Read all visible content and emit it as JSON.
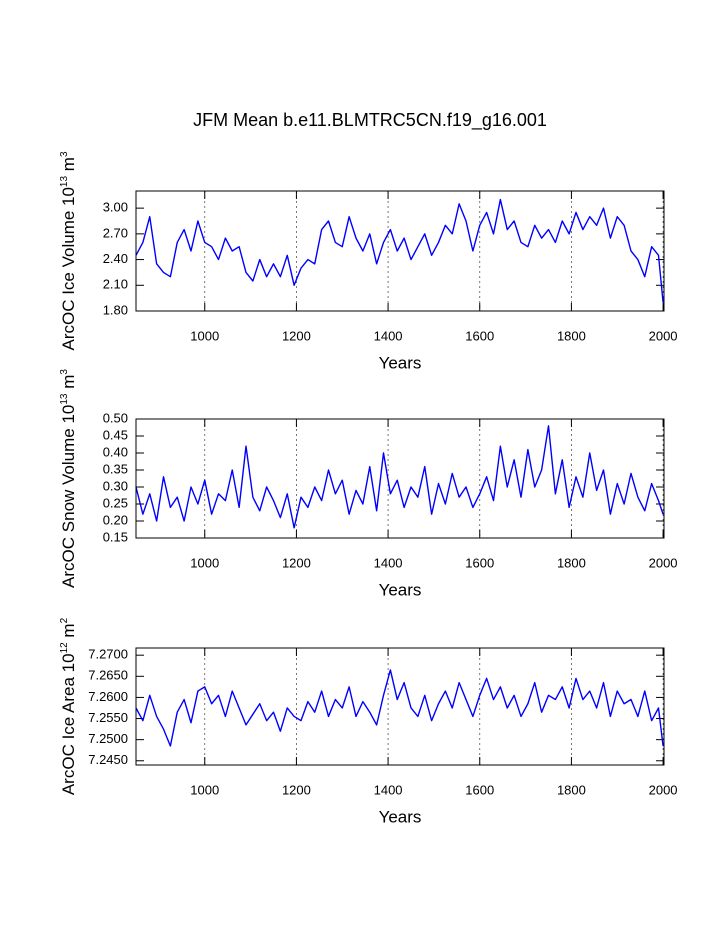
{
  "chart_data": [
    {
      "type": "line",
      "title": "JFM Mean b.e11.BLMTRC5CN.f19_g16.001",
      "xlabel": "Years",
      "ylabel": [
        "ArcOC Ice Volume 10",
        "13",
        " m",
        "3"
      ],
      "x": [
        850,
        865,
        880,
        895,
        910,
        925,
        940,
        955,
        970,
        985,
        1000,
        1015,
        1030,
        1045,
        1060,
        1075,
        1090,
        1105,
        1120,
        1135,
        1150,
        1165,
        1180,
        1195,
        1210,
        1225,
        1240,
        1255,
        1270,
        1285,
        1300,
        1315,
        1330,
        1345,
        1360,
        1375,
        1390,
        1405,
        1420,
        1435,
        1450,
        1465,
        1480,
        1495,
        1510,
        1525,
        1540,
        1555,
        1570,
        1585,
        1600,
        1615,
        1630,
        1645,
        1660,
        1675,
        1690,
        1705,
        1720,
        1735,
        1750,
        1765,
        1780,
        1795,
        1810,
        1825,
        1840,
        1855,
        1870,
        1885,
        1900,
        1915,
        1930,
        1945,
        1960,
        1975,
        1990,
        2000
      ],
      "series": [
        {
          "color": "#0000ff",
          "values": [
            2.45,
            2.6,
            2.9,
            2.35,
            2.25,
            2.2,
            2.6,
            2.75,
            2.5,
            2.85,
            2.6,
            2.55,
            2.4,
            2.65,
            2.5,
            2.55,
            2.25,
            2.15,
            2.4,
            2.2,
            2.35,
            2.2,
            2.45,
            2.1,
            2.3,
            2.4,
            2.35,
            2.75,
            2.85,
            2.6,
            2.55,
            2.9,
            2.65,
            2.5,
            2.7,
            2.35,
            2.6,
            2.75,
            2.5,
            2.65,
            2.4,
            2.55,
            2.7,
            2.45,
            2.6,
            2.8,
            2.7,
            3.05,
            2.85,
            2.5,
            2.8,
            2.95,
            2.7,
            3.1,
            2.75,
            2.85,
            2.6,
            2.55,
            2.8,
            2.65,
            2.75,
            2.6,
            2.85,
            2.7,
            2.95,
            2.75,
            2.9,
            2.8,
            3.0,
            2.65,
            2.9,
            2.8,
            2.5,
            2.4,
            2.2,
            2.55,
            2.45,
            1.9
          ]
        }
      ],
      "xlim": [
        850,
        2002
      ],
      "ylim": [
        1.8,
        3.2
      ],
      "xticks": [
        1000,
        1200,
        1400,
        1600,
        1800,
        2000
      ],
      "yticks": [
        {
          "value": 1.8,
          "label": "1.80"
        },
        {
          "value": 2.1,
          "label": "2.10"
        },
        {
          "value": 2.4,
          "label": "2.40"
        },
        {
          "value": 2.7,
          "label": "2.70"
        },
        {
          "value": 3.0,
          "label": "3.00"
        }
      ],
      "grid": true
    },
    {
      "type": "line",
      "xlabel": "Years",
      "ylabel": [
        "ArcOC Snow Volume 10",
        "13",
        " m",
        "3"
      ],
      "x": [
        850,
        865,
        880,
        895,
        910,
        925,
        940,
        955,
        970,
        985,
        1000,
        1015,
        1030,
        1045,
        1060,
        1075,
        1090,
        1105,
        1120,
        1135,
        1150,
        1165,
        1180,
        1195,
        1210,
        1225,
        1240,
        1255,
        1270,
        1285,
        1300,
        1315,
        1330,
        1345,
        1360,
        1375,
        1390,
        1405,
        1420,
        1435,
        1450,
        1465,
        1480,
        1495,
        1510,
        1525,
        1540,
        1555,
        1570,
        1585,
        1600,
        1615,
        1630,
        1645,
        1660,
        1675,
        1690,
        1705,
        1720,
        1735,
        1750,
        1765,
        1780,
        1795,
        1810,
        1825,
        1840,
        1855,
        1870,
        1885,
        1900,
        1915,
        1930,
        1945,
        1960,
        1975,
        1990,
        2000
      ],
      "series": [
        {
          "color": "#0000ff",
          "values": [
            0.3,
            0.22,
            0.28,
            0.2,
            0.33,
            0.24,
            0.27,
            0.2,
            0.3,
            0.25,
            0.32,
            0.22,
            0.28,
            0.26,
            0.35,
            0.24,
            0.42,
            0.27,
            0.23,
            0.3,
            0.26,
            0.21,
            0.28,
            0.18,
            0.27,
            0.24,
            0.3,
            0.26,
            0.35,
            0.28,
            0.32,
            0.22,
            0.29,
            0.25,
            0.36,
            0.23,
            0.4,
            0.28,
            0.32,
            0.24,
            0.3,
            0.27,
            0.36,
            0.22,
            0.31,
            0.25,
            0.34,
            0.27,
            0.3,
            0.24,
            0.28,
            0.33,
            0.26,
            0.42,
            0.3,
            0.38,
            0.27,
            0.41,
            0.3,
            0.35,
            0.48,
            0.28,
            0.38,
            0.24,
            0.33,
            0.27,
            0.4,
            0.29,
            0.35,
            0.22,
            0.31,
            0.25,
            0.34,
            0.27,
            0.23,
            0.31,
            0.26,
            0.22
          ]
        }
      ],
      "xlim": [
        850,
        2002
      ],
      "ylim": [
        0.15,
        0.5
      ],
      "xticks": [
        1000,
        1200,
        1400,
        1600,
        1800,
        2000
      ],
      "yticks": [
        {
          "value": 0.15,
          "label": "0.15"
        },
        {
          "value": 0.2,
          "label": "0.20"
        },
        {
          "value": 0.25,
          "label": "0.25"
        },
        {
          "value": 0.3,
          "label": "0.30"
        },
        {
          "value": 0.35,
          "label": "0.35"
        },
        {
          "value": 0.4,
          "label": "0.40"
        },
        {
          "value": 0.45,
          "label": "0.45"
        },
        {
          "value": 0.5,
          "label": "0.50"
        }
      ],
      "grid": true
    },
    {
      "type": "line",
      "xlabel": "Years",
      "ylabel": [
        "ArcOC Ice Area 10",
        "12",
        " m",
        "2"
      ],
      "x": [
        850,
        865,
        880,
        895,
        910,
        925,
        940,
        955,
        970,
        985,
        1000,
        1015,
        1030,
        1045,
        1060,
        1075,
        1090,
        1105,
        1120,
        1135,
        1150,
        1165,
        1180,
        1195,
        1210,
        1225,
        1240,
        1255,
        1270,
        1285,
        1300,
        1315,
        1330,
        1345,
        1360,
        1375,
        1390,
        1405,
        1420,
        1435,
        1450,
        1465,
        1480,
        1495,
        1510,
        1525,
        1540,
        1555,
        1570,
        1585,
        1600,
        1615,
        1630,
        1645,
        1660,
        1675,
        1690,
        1705,
        1720,
        1735,
        1750,
        1765,
        1780,
        1795,
        1810,
        1825,
        1840,
        1855,
        1870,
        1885,
        1900,
        1915,
        1930,
        1945,
        1960,
        1975,
        1990,
        2000
      ],
      "series": [
        {
          "color": "#0000ff",
          "values": [
            7.2575,
            7.2545,
            7.2605,
            7.2555,
            7.2525,
            7.2485,
            7.2565,
            7.2595,
            7.254,
            7.2615,
            7.2625,
            7.2585,
            7.2605,
            7.2555,
            7.2615,
            7.2575,
            7.2535,
            7.256,
            7.2585,
            7.2545,
            7.2565,
            7.252,
            7.2575,
            7.2555,
            7.2545,
            7.259,
            7.2565,
            7.2615,
            7.2555,
            7.2595,
            7.2575,
            7.2625,
            7.2555,
            7.259,
            7.2565,
            7.2535,
            7.2605,
            7.2665,
            7.2595,
            7.2635,
            7.2575,
            7.2555,
            7.2605,
            7.2545,
            7.2585,
            7.2615,
            7.2575,
            7.2635,
            7.2595,
            7.2555,
            7.2605,
            7.2645,
            7.2595,
            7.2625,
            7.2575,
            7.2605,
            7.2555,
            7.2585,
            7.2635,
            7.2565,
            7.2605,
            7.2595,
            7.2625,
            7.2575,
            7.2645,
            7.2595,
            7.2615,
            7.2575,
            7.2635,
            7.2555,
            7.2615,
            7.2585,
            7.2595,
            7.2555,
            7.2615,
            7.2545,
            7.2575,
            7.2485
          ]
        }
      ],
      "xlim": [
        850,
        2002
      ],
      "ylim": [
        7.244,
        7.2717
      ],
      "xticks": [
        1000,
        1200,
        1400,
        1600,
        1800,
        2000
      ],
      "yticks": [
        {
          "value": 7.245,
          "label": "7.2450"
        },
        {
          "value": 7.25,
          "label": "7.2500"
        },
        {
          "value": 7.255,
          "label": "7.2550"
        },
        {
          "value": 7.26,
          "label": "7.2600"
        },
        {
          "value": 7.265,
          "label": "7.2650"
        },
        {
          "value": 7.27,
          "label": "7.2700"
        }
      ],
      "grid": true
    }
  ]
}
